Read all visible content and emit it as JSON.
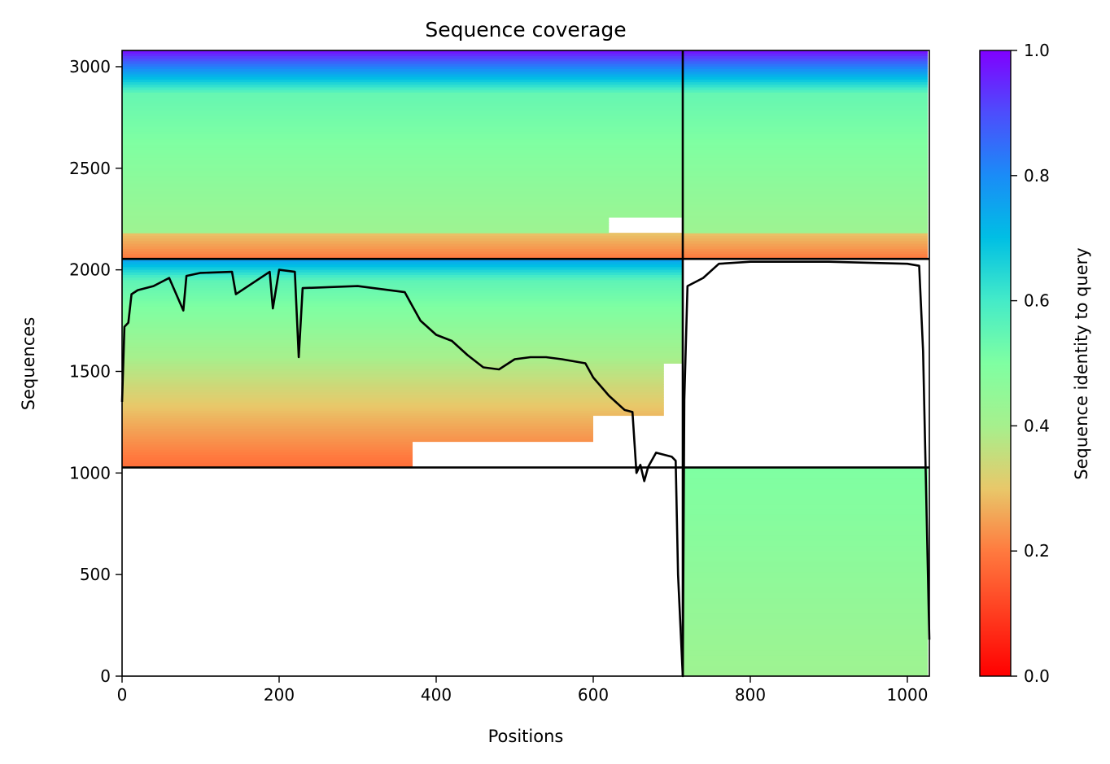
{
  "chart_data": {
    "type": "heatmap",
    "title": "Sequence coverage",
    "xlabel": "Positions",
    "ylabel": "Sequences",
    "xlim": [
      0,
      1028
    ],
    "ylim": [
      0,
      3080
    ],
    "xticks": [
      "0",
      "200",
      "400",
      "600",
      "800",
      "1000"
    ],
    "xtick_values": [
      0,
      200,
      400,
      600,
      800,
      1000
    ],
    "yticks": [
      "0",
      "500",
      "1000",
      "1500",
      "2000",
      "2500",
      "3000"
    ],
    "ytick_values": [
      0,
      500,
      1000,
      1500,
      2000,
      2500,
      3000
    ],
    "colorbar": {
      "label": "Sequence identity to query",
      "range": [
        0.0,
        1.0
      ],
      "ticks": [
        "0.0",
        "0.2",
        "0.4",
        "0.6",
        "0.8",
        "1.0"
      ],
      "tick_values": [
        0.0,
        0.2,
        0.4,
        0.6,
        0.8,
        1.0
      ],
      "colormap": "rainbow"
    },
    "chain_boundary_x": 714,
    "block_boundaries_y": [
      1027,
      2054
    ],
    "blocks": [
      {
        "x_start": 0,
        "x_end": 714,
        "y_start": 1027,
        "y_end": 2054
      },
      {
        "x_start": 714,
        "x_end": 1028,
        "y_start": 0,
        "y_end": 1027
      },
      {
        "x_start": 0,
        "x_end": 714,
        "y_start": 2054,
        "y_end": 3080
      },
      {
        "x_start": 714,
        "x_end": 1028,
        "y_start": 2054,
        "y_end": 3080
      }
    ],
    "coverage_line": {
      "color": "#000000",
      "x": [
        0,
        3,
        8,
        12,
        20,
        40,
        60,
        78,
        82,
        100,
        140,
        145,
        188,
        192,
        200,
        220,
        225,
        230,
        300,
        360,
        370,
        380,
        400,
        420,
        440,
        460,
        480,
        500,
        520,
        540,
        560,
        590,
        600,
        620,
        640,
        650,
        655,
        660,
        665,
        670,
        680,
        700,
        705,
        708,
        714,
        716,
        720,
        740,
        760,
        800,
        900,
        1000,
        1015,
        1020,
        1028
      ],
      "y": [
        1350,
        1720,
        1740,
        1880,
        1900,
        1920,
        1960,
        1800,
        1970,
        1985,
        1990,
        1880,
        1990,
        1810,
        2000,
        1990,
        1570,
        1910,
        1920,
        1890,
        1820,
        1750,
        1680,
        1650,
        1580,
        1520,
        1510,
        1560,
        1570,
        1570,
        1560,
        1540,
        1470,
        1380,
        1310,
        1300,
        1000,
        1040,
        960,
        1030,
        1100,
        1080,
        1060,
        500,
        0,
        1360,
        1920,
        1960,
        2030,
        2040,
        2040,
        2030,
        2020,
        1600,
        180
      ]
    }
  }
}
